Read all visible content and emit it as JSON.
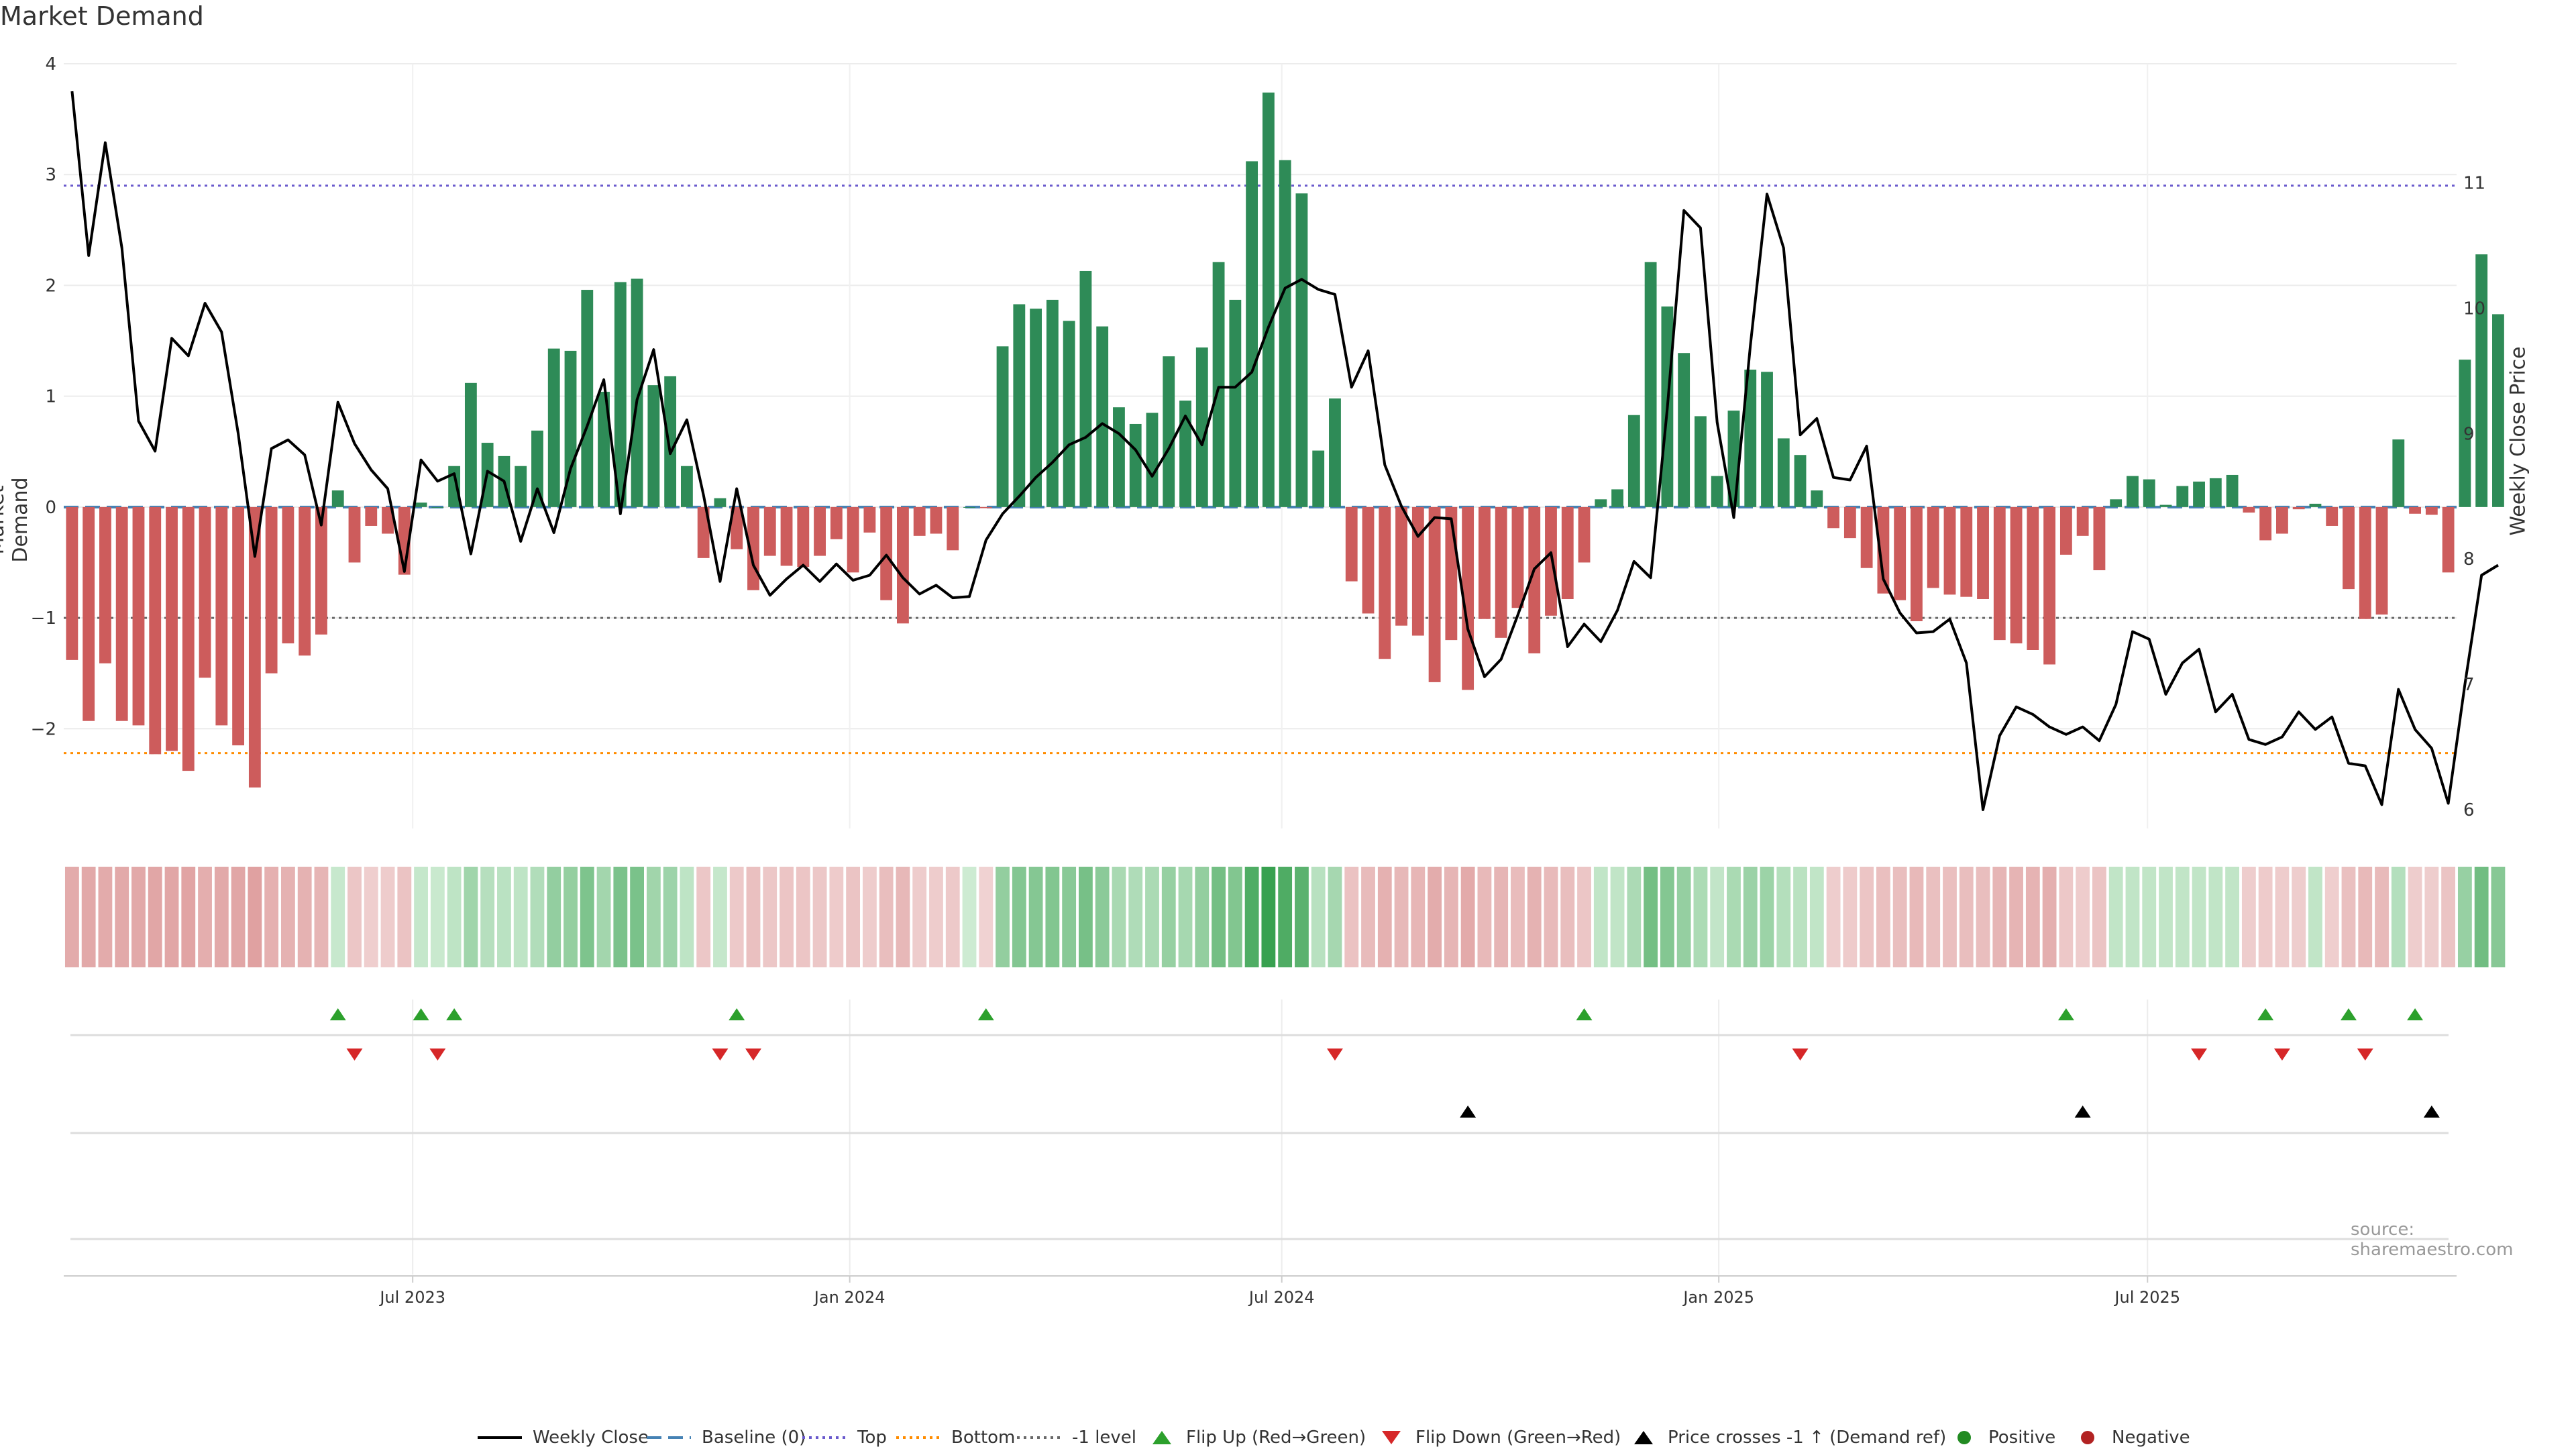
{
  "chart_data": {
    "type": "bar",
    "title": "Market Demand",
    "source_text": "source: sharemaestro.com",
    "ylabel": "Market Demand",
    "y2label": "Weekly Close Price",
    "ylim": [
      -2.9,
      4.0
    ],
    "y2lim": [
      5.85,
      11.95
    ],
    "yticks": [
      4,
      3,
      2,
      1,
      0,
      -1,
      -2
    ],
    "ytick_labels": [
      "4",
      "3",
      "2",
      "1",
      "0",
      "−1",
      "−2"
    ],
    "y2ticks": [
      11,
      10,
      9,
      8,
      7,
      6
    ],
    "y2tick_labels": [
      "11",
      "10",
      "9",
      "8",
      "7",
      "6"
    ],
    "x_weeks_total": 144,
    "xticks": [
      {
        "label": "Jul 2023",
        "week": 20.5
      },
      {
        "label": "Jan 2024",
        "week": 46.8
      },
      {
        "label": "Jul 2024",
        "week": 72.8
      },
      {
        "label": "Jan 2025",
        "week": 99.1
      },
      {
        "label": "Jul 2025",
        "week": 124.9
      }
    ],
    "ref_lines": {
      "baseline": 0,
      "top": 2.9,
      "bottom": -2.22,
      "minus1": -1
    },
    "demand": [
      -1.38,
      -1.93,
      -1.41,
      -1.93,
      -1.97,
      -2.23,
      -2.2,
      -2.38,
      -1.54,
      -1.97,
      -2.15,
      -2.53,
      -1.5,
      -1.23,
      -1.34,
      -1.15,
      0.15,
      -0.5,
      -0.17,
      -0.24,
      -0.61,
      0.04,
      0.0,
      0.37,
      1.12,
      0.58,
      0.46,
      0.37,
      0.69,
      1.43,
      1.41,
      1.96,
      1.04,
      2.03,
      2.06,
      1.1,
      1.18,
      0.37,
      -0.46,
      0.08,
      -0.38,
      -0.75,
      -0.44,
      -0.53,
      -0.54,
      -0.44,
      -0.29,
      -0.59,
      -0.23,
      -0.84,
      -1.05,
      -0.26,
      -0.24,
      -0.39,
      0.0,
      -0.01,
      1.45,
      1.83,
      1.79,
      1.87,
      1.68,
      2.13,
      1.63,
      0.9,
      0.75,
      0.85,
      1.36,
      0.96,
      1.44,
      2.21,
      1.87,
      3.12,
      3.74,
      3.13,
      2.83,
      0.51,
      0.98,
      -0.67,
      -0.96,
      -1.37,
      -1.07,
      -1.16,
      -1.58,
      -1.2,
      -1.65,
      -1.01,
      -1.18,
      -0.91,
      -1.32,
      -0.98,
      -0.83,
      -0.5,
      0.07,
      0.16,
      0.83,
      2.21,
      1.81,
      1.39,
      0.82,
      0.28,
      0.87,
      1.24,
      1.22,
      0.62,
      0.47,
      0.15,
      -0.19,
      -0.28,
      -0.55,
      -0.78,
      -0.84,
      -1.03,
      -0.73,
      -0.79,
      -0.81,
      -0.83,
      -1.2,
      -1.23,
      -1.29,
      -1.42,
      -0.43,
      -0.26,
      -0.57,
      0.07,
      0.28,
      0.25,
      0.02,
      0.19,
      0.23,
      0.26,
      0.29,
      -0.05,
      -0.3,
      -0.24,
      -0.02,
      0.03,
      -0.17,
      -0.74,
      -1.01,
      -0.97,
      0.61,
      -0.06,
      -0.07,
      -0.59,
      1.33,
      2.28,
      1.74
    ],
    "close": [
      11.73,
      10.42,
      11.32,
      10.48,
      9.1,
      8.86,
      9.76,
      9.62,
      10.04,
      9.81,
      9.0,
      8.02,
      8.88,
      8.95,
      8.83,
      8.27,
      9.25,
      8.92,
      8.71,
      8.56,
      7.9,
      8.79,
      8.62,
      8.68,
      8.04,
      8.7,
      8.62,
      8.14,
      8.56,
      8.21,
      8.72,
      9.06,
      9.43,
      8.36,
      9.27,
      9.67,
      8.84,
      9.11,
      8.51,
      7.82,
      8.56,
      7.95,
      7.71,
      7.84,
      7.95,
      7.82,
      7.96,
      7.83,
      7.87,
      8.03,
      7.85,
      7.72,
      7.79,
      7.69,
      7.7,
      8.15,
      8.36,
      8.5,
      8.65,
      8.77,
      8.91,
      8.97,
      9.08,
      9.0,
      8.87,
      8.66,
      8.88,
      9.14,
      8.91,
      9.37,
      9.37,
      9.49,
      9.85,
      10.16,
      10.23,
      10.15,
      10.11,
      9.37,
      9.66,
      8.75,
      8.42,
      8.18,
      8.33,
      8.32,
      7.44,
      7.06,
      7.2,
      7.55,
      7.92,
      8.05,
      7.3,
      7.48,
      7.34,
      7.59,
      7.98,
      7.85,
      9.2,
      10.78,
      10.64,
      9.09,
      8.33,
      9.7,
      10.91,
      10.48,
      8.99,
      9.12,
      8.65,
      8.63,
      8.9,
      7.84,
      7.57,
      7.41,
      7.42,
      7.52,
      7.17,
      6.0,
      6.59,
      6.82,
      6.76,
      6.66,
      6.6,
      6.66,
      6.55,
      6.84,
      7.42,
      7.36,
      6.92,
      7.17,
      7.28,
      6.78,
      6.92,
      6.56,
      6.52,
      6.58,
      6.78,
      6.64,
      6.74,
      6.37,
      6.35,
      6.04,
      6.96,
      6.64,
      6.49,
      6.05,
      7.0,
      7.87,
      7.95
    ],
    "heat_cells": [
      -1.6,
      -1.7,
      -1.6,
      -1.7,
      -1.7,
      -1.8,
      -1.8,
      -1.9,
      -1.5,
      -1.7,
      -1.8,
      -2.0,
      -1.4,
      -1.3,
      -1.3,
      -1.2,
      0.15,
      -0.5,
      -0.17,
      -0.24,
      -0.61,
      0.2,
      0.1,
      0.37,
      1.12,
      0.58,
      0.46,
      0.37,
      0.69,
      1.43,
      1.41,
      1.96,
      1.04,
      2.03,
      2.06,
      1.1,
      1.18,
      0.37,
      -0.46,
      0.2,
      -0.38,
      -0.75,
      -0.44,
      -0.53,
      -0.54,
      -0.44,
      -0.29,
      -0.59,
      -0.23,
      -0.84,
      -1.05,
      -0.26,
      -0.24,
      -0.39,
      0.0,
      -0.01,
      1.45,
      1.83,
      1.79,
      1.87,
      1.68,
      2.13,
      1.63,
      0.9,
      0.75,
      0.85,
      1.36,
      0.96,
      1.44,
      2.21,
      1.87,
      3.12,
      3.74,
      3.13,
      2.83,
      0.51,
      0.98,
      -0.67,
      -0.96,
      -1.37,
      -1.07,
      -1.16,
      -1.58,
      -1.2,
      -1.65,
      -1.01,
      -1.18,
      -0.91,
      -1.32,
      -0.98,
      -0.83,
      -0.5,
      0.3,
      0.3,
      0.83,
      2.21,
      1.81,
      1.39,
      0.82,
      0.28,
      0.87,
      1.24,
      1.22,
      0.62,
      0.47,
      0.3,
      -0.19,
      -0.28,
      -0.55,
      -0.78,
      -0.84,
      -1.03,
      -0.73,
      -0.79,
      -0.81,
      -0.83,
      -1.2,
      -1.23,
      -1.29,
      -1.42,
      -0.43,
      -0.26,
      -0.57,
      0.3,
      0.3,
      0.3,
      0.3,
      0.3,
      0.3,
      0.3,
      0.3,
      -0.2,
      -0.3,
      -0.24,
      -0.2,
      0.3,
      -0.17,
      -0.74,
      -1.01,
      -0.97,
      0.61,
      -0.2,
      -0.2,
      -0.59,
      1.33,
      2.28,
      1.74
    ],
    "flip_up_weeks": [
      16,
      21,
      23,
      40,
      55,
      91,
      120,
      132,
      137,
      141
    ],
    "flip_down_weeks": [
      17,
      22,
      39,
      41,
      76,
      104,
      128,
      133,
      138
    ],
    "price_cross_weeks": [
      84,
      121,
      142
    ],
    "legend": [
      "Weekly Close",
      "Baseline (0)",
      "Top",
      "Bottom",
      "-1 level",
      "Flip Up (Red→Green)",
      "Flip Down (Green→Red)",
      "Price crosses -1 ↑ (Demand ref)",
      "Positive",
      "Negative"
    ],
    "colors": {
      "positive": "#2e8b57",
      "negative": "#cd5c5c",
      "close": "#000000",
      "baseline": "#4682b4",
      "top": "#6a5acd",
      "bottom": "#ff8c00",
      "minus1": "#696969",
      "flip_up": "#2ca02c",
      "flip_down": "#d62728",
      "cross": "#000000",
      "legend_positive": "#228b22",
      "legend_negative": "#b22222"
    }
  }
}
